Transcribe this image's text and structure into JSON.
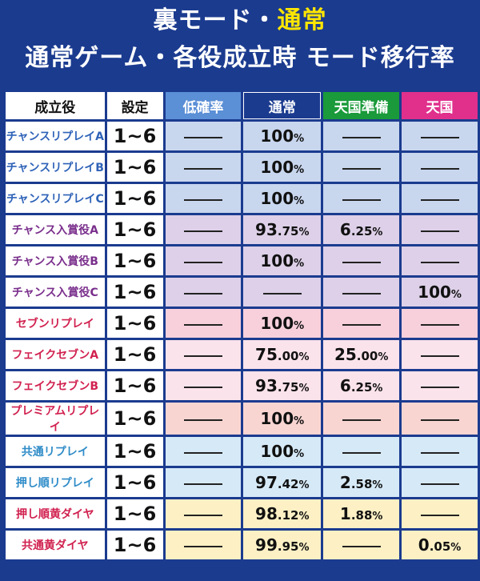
{
  "title": {
    "line1_prefix": "裏モード・",
    "line1_highlight": "通常",
    "line2": "通常ゲーム・各役成立時 モード移行率"
  },
  "headers": [
    "成立役",
    "設定",
    "低確率",
    "通常",
    "天国準備",
    "天国"
  ],
  "rows": [
    {
      "role": "チャンスリプレイA",
      "setting": "1~6",
      "values": [
        "",
        "100%",
        "",
        ""
      ],
      "group": "blue"
    },
    {
      "role": "チャンスリプレイB",
      "setting": "1~6",
      "values": [
        "",
        "100%",
        "",
        ""
      ],
      "group": "blue"
    },
    {
      "role": "チャンスリプレイC",
      "setting": "1~6",
      "values": [
        "",
        "100%",
        "",
        ""
      ],
      "group": "blue"
    },
    {
      "role": "チャンス入賞役A",
      "setting": "1~6",
      "values": [
        "",
        "93.75%",
        "6.25%",
        ""
      ],
      "group": "purple"
    },
    {
      "role": "チャンス入賞役B",
      "setting": "1~6",
      "values": [
        "",
        "100%",
        "",
        ""
      ],
      "group": "purple"
    },
    {
      "role": "チャンス入賞役C",
      "setting": "1~6",
      "values": [
        "",
        "",
        "",
        "100%"
      ],
      "group": "purple"
    },
    {
      "role": "セブンリプレイ",
      "setting": "1~6",
      "values": [
        "",
        "100%",
        "",
        ""
      ],
      "group": "pink"
    },
    {
      "role": "フェイクセブンA",
      "setting": "1~6",
      "values": [
        "",
        "75.00%",
        "25.00%",
        ""
      ],
      "group": "lpink"
    },
    {
      "role": "フェイクセブンB",
      "setting": "1~6",
      "values": [
        "",
        "93.75%",
        "6.25%",
        ""
      ],
      "group": "lpink"
    },
    {
      "role": "プレミアムリプレイ",
      "setting": "1~6",
      "values": [
        "",
        "100%",
        "",
        ""
      ],
      "group": "salmon"
    },
    {
      "role": "共通リプレイ",
      "setting": "1~6",
      "values": [
        "",
        "100%",
        "",
        ""
      ],
      "group": "sky"
    },
    {
      "role": "押し順リプレイ",
      "setting": "1~6",
      "values": [
        "",
        "97.42%",
        "2.58%",
        ""
      ],
      "group": "sky"
    },
    {
      "role": "押し順黄ダイヤ",
      "setting": "1~6",
      "values": [
        "",
        "98.12%",
        "1.88%",
        ""
      ],
      "group": "yellow"
    },
    {
      "role": "共通黄ダイヤ",
      "setting": "1~6",
      "values": [
        "",
        "99.95%",
        "",
        "0.05%"
      ],
      "group": "yellow"
    }
  ]
}
